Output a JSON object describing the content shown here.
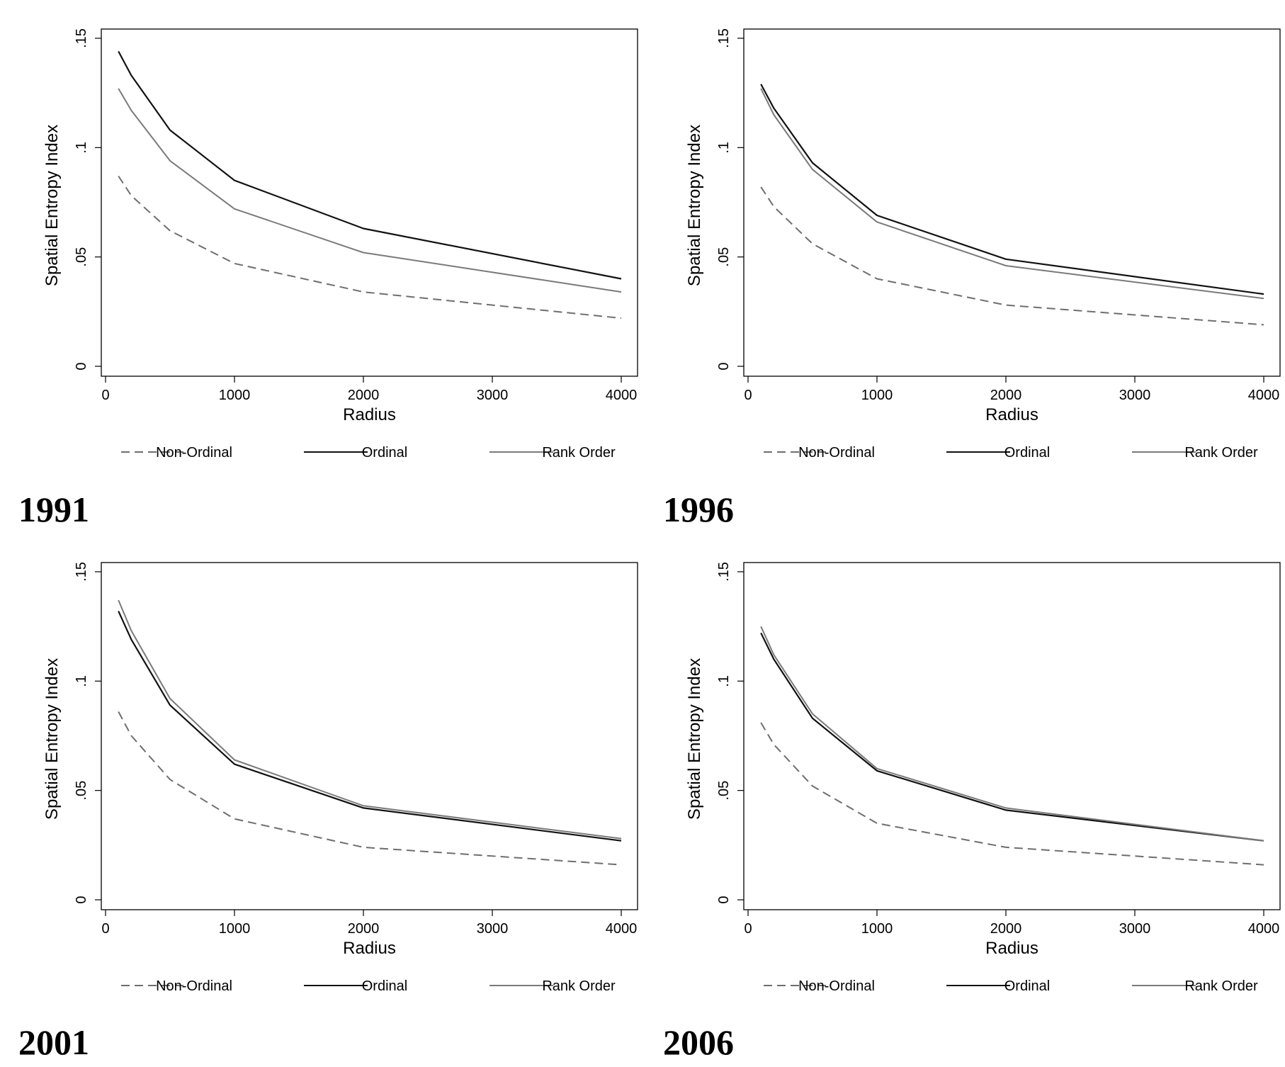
{
  "chart_data": [
    {
      "type": "line",
      "title": "1991",
      "xlabel": "Radius",
      "ylabel": "Spatial Entropy Index",
      "xlim": [
        0,
        4000
      ],
      "ylim": [
        0,
        0.15
      ],
      "xticks": [
        "0",
        "1000",
        "2000",
        "3000",
        "4000"
      ],
      "yticks": [
        "0",
        ".05",
        ".1",
        ".15"
      ],
      "legend_position": "bottom",
      "x": [
        100,
        200,
        500,
        1000,
        2000,
        4000
      ],
      "series": [
        {
          "name": "Non-Ordinal",
          "style": "dashed",
          "color": "#6e6e6e",
          "values": [
            0.087,
            0.078,
            0.062,
            0.047,
            0.034,
            0.022
          ]
        },
        {
          "name": "Ordinal",
          "style": "solid",
          "color": "#111111",
          "values": [
            0.144,
            0.133,
            0.108,
            0.085,
            0.063,
            0.04
          ]
        },
        {
          "name": "Rank Order",
          "style": "solid",
          "color": "#7a7a7a",
          "values": [
            0.127,
            0.117,
            0.094,
            0.072,
            0.052,
            0.034
          ]
        }
      ]
    },
    {
      "type": "line",
      "title": "1996",
      "xlabel": "Radius",
      "ylabel": "Spatial Entropy Index",
      "xlim": [
        0,
        4000
      ],
      "ylim": [
        0,
        0.15
      ],
      "xticks": [
        "0",
        "1000",
        "2000",
        "3000",
        "4000"
      ],
      "yticks": [
        "0",
        ".05",
        ".1",
        ".15"
      ],
      "legend_position": "bottom",
      "x": [
        100,
        200,
        500,
        1000,
        2000,
        4000
      ],
      "series": [
        {
          "name": "Non-Ordinal",
          "style": "dashed",
          "color": "#6e6e6e",
          "values": [
            0.082,
            0.073,
            0.056,
            0.04,
            0.028,
            0.019
          ]
        },
        {
          "name": "Ordinal",
          "style": "solid",
          "color": "#111111",
          "values": [
            0.129,
            0.118,
            0.093,
            0.069,
            0.049,
            0.033
          ]
        },
        {
          "name": "Rank Order",
          "style": "solid",
          "color": "#7a7a7a",
          "values": [
            0.127,
            0.115,
            0.09,
            0.066,
            0.046,
            0.031
          ]
        }
      ]
    },
    {
      "type": "line",
      "title": "2001",
      "xlabel": "Radius",
      "ylabel": "Spatial Entropy Index",
      "xlim": [
        0,
        4000
      ],
      "ylim": [
        0,
        0.15
      ],
      "xticks": [
        "0",
        "1000",
        "2000",
        "3000",
        "4000"
      ],
      "yticks": [
        "0",
        ".05",
        ".1",
        ".15"
      ],
      "legend_position": "bottom",
      "x": [
        100,
        200,
        500,
        1000,
        2000,
        4000
      ],
      "series": [
        {
          "name": "Non-Ordinal",
          "style": "dashed",
          "color": "#6e6e6e",
          "values": [
            0.086,
            0.075,
            0.055,
            0.037,
            0.024,
            0.016
          ]
        },
        {
          "name": "Ordinal",
          "style": "solid",
          "color": "#111111",
          "values": [
            0.132,
            0.119,
            0.089,
            0.062,
            0.042,
            0.027
          ]
        },
        {
          "name": "Rank Order",
          "style": "solid",
          "color": "#7a7a7a",
          "values": [
            0.137,
            0.123,
            0.092,
            0.064,
            0.043,
            0.028
          ]
        }
      ]
    },
    {
      "type": "line",
      "title": "2006",
      "xlabel": "Radius",
      "ylabel": "Spatial Entropy Index",
      "xlim": [
        0,
        4000
      ],
      "ylim": [
        0,
        0.15
      ],
      "xticks": [
        "0",
        "1000",
        "2000",
        "3000",
        "4000"
      ],
      "yticks": [
        "0",
        ".05",
        ".1",
        ".15"
      ],
      "legend_position": "bottom",
      "x": [
        100,
        200,
        500,
        1000,
        2000,
        4000
      ],
      "series": [
        {
          "name": "Non-Ordinal",
          "style": "dashed",
          "color": "#6e6e6e",
          "values": [
            0.081,
            0.071,
            0.052,
            0.035,
            0.024,
            0.016
          ]
        },
        {
          "name": "Ordinal",
          "style": "solid",
          "color": "#111111",
          "values": [
            0.122,
            0.11,
            0.083,
            0.059,
            0.041,
            0.027
          ]
        },
        {
          "name": "Rank Order",
          "style": "solid",
          "color": "#7a7a7a",
          "values": [
            0.125,
            0.112,
            0.085,
            0.06,
            0.042,
            0.027
          ]
        }
      ]
    }
  ]
}
